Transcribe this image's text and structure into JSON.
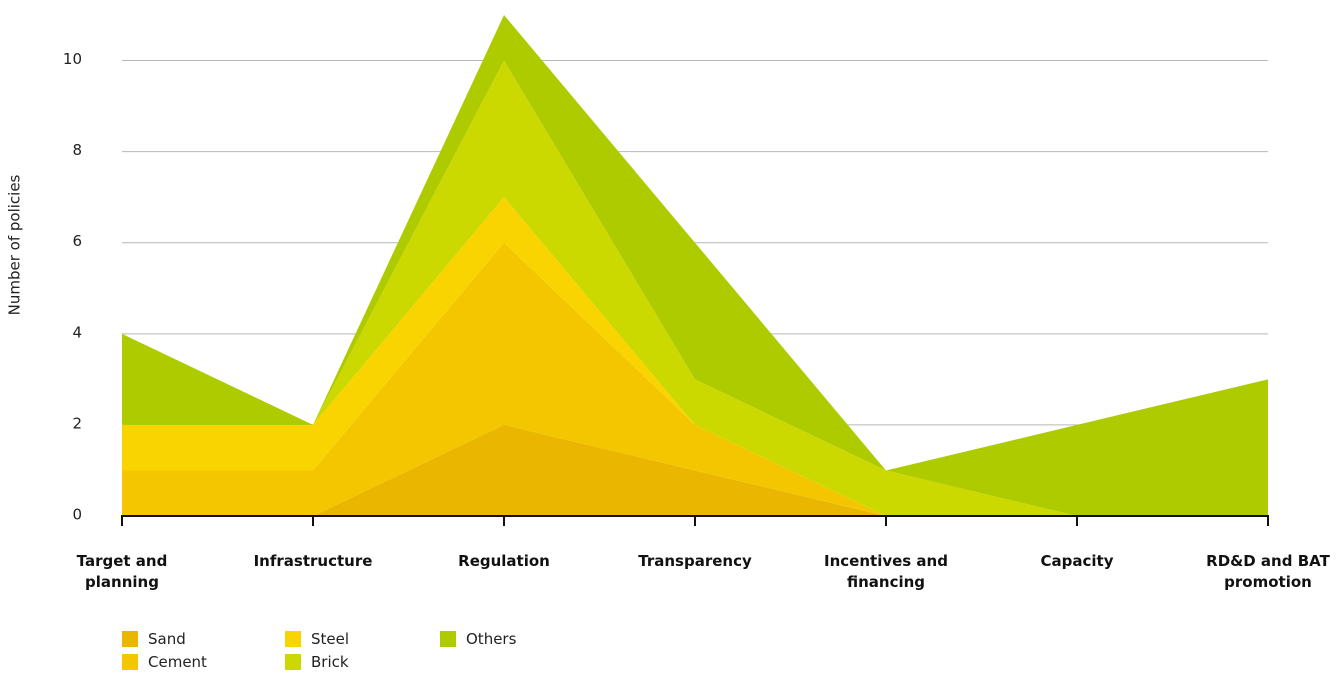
{
  "chart_data": {
    "type": "stacked_area",
    "y_label": "Number of policies",
    "categories": [
      "Target and planning",
      "Infrastructure",
      "Regulation",
      "Transparency",
      "Incentives and financing",
      "Capacity",
      "RD&D and BAT promotion"
    ],
    "series": [
      {
        "name": "Sand",
        "color": "#eab600",
        "values": [
          0,
          0,
          2,
          1,
          0,
          0,
          0
        ]
      },
      {
        "name": "Cement",
        "color": "#f3c600",
        "values": [
          1,
          1,
          4,
          1,
          0,
          0,
          0
        ]
      },
      {
        "name": "Steel",
        "color": "#f9d400",
        "values": [
          1,
          1,
          1,
          0,
          0,
          0,
          0
        ]
      },
      {
        "name": "Brick",
        "color": "#cbd900",
        "values": [
          0,
          0,
          3,
          1,
          1,
          0,
          0
        ]
      },
      {
        "name": "Others",
        "color": "#aecb00",
        "values": [
          2,
          0,
          1,
          3,
          0,
          2,
          3
        ]
      }
    ],
    "ylim": [
      0,
      11
    ],
    "yticks": [
      0,
      2,
      4,
      6,
      8,
      10
    ],
    "grid": true
  }
}
